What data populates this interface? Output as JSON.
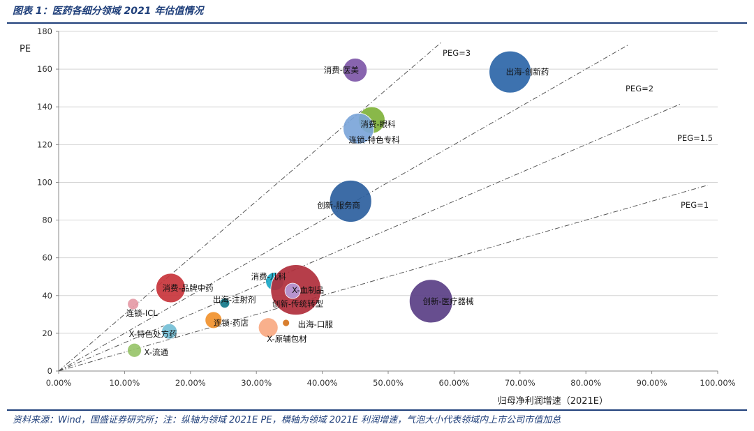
{
  "figure": {
    "title": "图表 1：医药各细分领域 2021 年估值情况",
    "source": "资料来源：Wind，国盛证券研究所；注：纵轴为领域 2021E PE，横轴为领域 2021E 利润增速，气泡大小代表领域内上市公司市值加总"
  },
  "chart_data": {
    "type": "scatter",
    "title": "",
    "xlabel": "归母净利润增速（2021E）",
    "ylabel": "PE",
    "xlim": [
      0,
      100
    ],
    "ylim": [
      0,
      180
    ],
    "x_ticks": [
      0,
      10,
      20,
      30,
      40,
      50,
      60,
      70,
      80,
      90,
      100
    ],
    "x_tick_labels": [
      "0.00%",
      "10.00%",
      "20.00%",
      "30.00%",
      "40.00%",
      "50.00%",
      "60.00%",
      "70.00%",
      "80.00%",
      "90.00%",
      "100.00%"
    ],
    "y_ticks": [
      0,
      20,
      40,
      60,
      80,
      100,
      120,
      140,
      160,
      180
    ],
    "y_tick_labels": [
      "0",
      "20",
      "40",
      "60",
      "80",
      "100",
      "120",
      "140",
      "160",
      "180"
    ],
    "grid": true,
    "peg_lines": [
      {
        "label": "PEG=3",
        "peg": 3,
        "x_end": 58
      },
      {
        "label": "PEG=2",
        "peg": 2,
        "x_end": 86.5
      },
      {
        "label": "PEG=1.5",
        "peg": 1.5,
        "x_end": 94.5
      },
      {
        "label": "PEG=1",
        "peg": 1,
        "x_end": 98.5
      }
    ],
    "points": [
      {
        "label": "消费-医美",
        "x": 45,
        "y": 159.5,
        "size": 17,
        "color": "#7e57a8"
      },
      {
        "label": "出海-创新药",
        "x": 68.5,
        "y": 158.5,
        "size": 30,
        "color": "#2c66a8"
      },
      {
        "label": "消费-眼科",
        "x": 47.5,
        "y": 133,
        "size": 19,
        "color": "#7fb23a"
      },
      {
        "label": "连锁-特色专科",
        "x": 45.5,
        "y": 128.5,
        "size": 22,
        "color": "#7ba5d9"
      },
      {
        "label": "创新-服务商",
        "x": 44.3,
        "y": 90,
        "size": 30,
        "color": "#2c5f9e"
      },
      {
        "label": "消费-儿科",
        "x": 32.8,
        "y": 47.5,
        "size": 13,
        "color": "#1aa7c6"
      },
      {
        "label": "创新-传统转型",
        "x": 36,
        "y": 43,
        "size": 36,
        "color": "#b02e3b"
      },
      {
        "label": "X-血制品",
        "x": 35.5,
        "y": 42.5,
        "size": 11,
        "color": "#b79ad8"
      },
      {
        "label": "消费-品牌中药",
        "x": 17,
        "y": 44,
        "size": 21,
        "color": "#c8343b"
      },
      {
        "label": "连锁-ICL",
        "x": 11.3,
        "y": 35.5,
        "size": 8,
        "color": "#e59aa6"
      },
      {
        "label": "出海-注射剂",
        "x": 25.2,
        "y": 36,
        "size": 7,
        "color": "#127a8a"
      },
      {
        "label": "创新-医疗器械",
        "x": 56.5,
        "y": 37,
        "size": 31,
        "color": "#5a3f85"
      },
      {
        "label": "连锁-药店",
        "x": 23.5,
        "y": 27,
        "size": 12,
        "color": "#f1912d"
      },
      {
        "label": "出海-口服",
        "x": 34.5,
        "y": 25.5,
        "size": 5,
        "color": "#d6741d"
      },
      {
        "label": "X-原辅包材",
        "x": 31.8,
        "y": 23,
        "size": 14,
        "color": "#f8a982"
      },
      {
        "label": "X-特色处方药",
        "x": 16.8,
        "y": 21,
        "size": 11,
        "color": "#74bfd6"
      },
      {
        "label": "X-流通",
        "x": 11.5,
        "y": 11,
        "size": 10,
        "color": "#98c46a"
      }
    ]
  }
}
